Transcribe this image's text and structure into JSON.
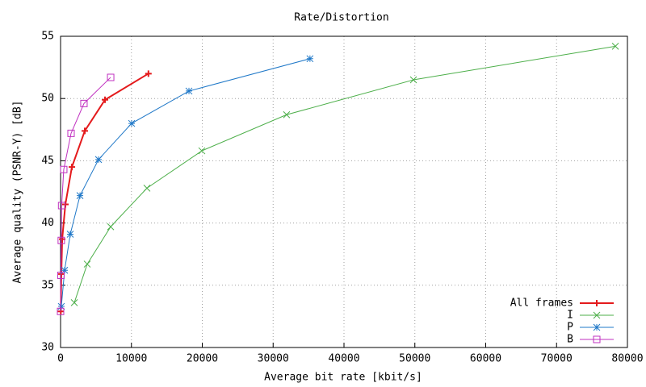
{
  "chart_data": {
    "type": "line",
    "title": "Rate/Distortion",
    "x_label": "Average bit rate [kbit/s]",
    "y_label": "Average quality (PSNR-Y) [dB]",
    "xlim": [
      0,
      80000
    ],
    "ylim": [
      30,
      55
    ],
    "xticks": [
      0,
      10000,
      20000,
      30000,
      40000,
      50000,
      60000,
      70000,
      80000
    ],
    "yticks": [
      30,
      35,
      40,
      45,
      50,
      55
    ],
    "grid": true,
    "legend": "lower right",
    "series": [
      {
        "name": "All frames",
        "color": "#e41a1c",
        "marker": "plus",
        "x": [
          30,
          110,
          230,
          680,
          1600,
          3420,
          6270,
          12400
        ],
        "values": [
          32.9,
          35.9,
          38.7,
          41.5,
          44.5,
          47.4,
          49.9,
          52.0
        ]
      },
      {
        "name": "I",
        "color": "#4daf4a",
        "marker": "cross",
        "x": [
          1940,
          3760,
          7070,
          12190,
          19940,
          31900,
          49800,
          78300
        ],
        "values": [
          33.6,
          36.7,
          39.7,
          42.8,
          45.8,
          48.7,
          51.5,
          54.2
        ]
      },
      {
        "name": "P",
        "color": "#1f78c8",
        "marker": "star",
        "x": [
          110,
          570,
          1370,
          2740,
          5360,
          10030,
          18120,
          35200
        ],
        "values": [
          33.3,
          36.2,
          39.1,
          42.2,
          45.1,
          48.0,
          50.6,
          53.2
        ]
      },
      {
        "name": "B",
        "color": "#c030c0",
        "marker": "square",
        "x": [
          0,
          50,
          100,
          150,
          450,
          1480,
          3300,
          7070
        ],
        "values": [
          32.9,
          35.8,
          38.6,
          41.4,
          44.3,
          47.2,
          49.6,
          51.7
        ]
      }
    ]
  }
}
